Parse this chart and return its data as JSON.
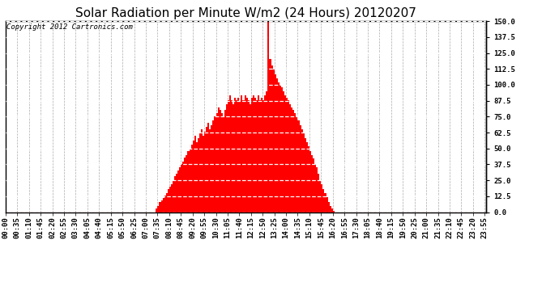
{
  "title": "Solar Radiation per Minute W/m2 (24 Hours) 20120207",
  "copyright_text": "Copyright 2012 Cartronics.com",
  "bar_color": "#ff0000",
  "background_color": "#ffffff",
  "plot_bg_color": "#ffffff",
  "ylim": [
    0.0,
    150.0
  ],
  "yticks": [
    0.0,
    12.5,
    25.0,
    37.5,
    50.0,
    62.5,
    75.0,
    87.5,
    100.0,
    112.5,
    125.0,
    137.5,
    150.0
  ],
  "grid_color": "#aaaaaa",
  "title_fontsize": 11,
  "tick_fontsize": 6.5,
  "values": [
    0,
    0,
    0,
    0,
    0,
    0,
    0,
    0,
    0,
    0,
    0,
    0,
    0,
    0,
    0,
    0,
    0,
    0,
    0,
    0,
    0,
    0,
    0,
    0,
    0,
    0,
    0,
    0,
    0,
    0,
    0,
    0,
    0,
    0,
    0,
    0,
    0,
    0,
    0,
    0,
    0,
    0,
    0,
    0,
    0,
    0,
    0,
    0,
    0,
    0,
    0,
    0,
    0,
    0,
    0,
    0,
    0,
    0,
    0,
    0,
    0,
    0,
    0,
    0,
    0,
    0,
    0,
    0,
    0,
    0,
    0,
    0,
    0,
    0,
    0,
    0,
    0,
    0,
    0,
    0,
    0,
    0,
    0,
    0,
    0,
    0,
    0,
    0,
    0,
    0,
    3,
    5,
    8,
    9,
    11,
    13,
    15,
    18,
    20,
    22,
    25,
    28,
    30,
    33,
    35,
    38,
    40,
    43,
    45,
    48,
    50,
    53,
    56,
    60,
    55,
    58,
    62,
    65,
    60,
    63,
    67,
    70,
    65,
    68,
    72,
    75,
    78,
    82,
    80,
    78,
    75,
    80,
    85,
    88,
    92,
    88,
    85,
    90,
    88,
    90,
    87,
    92,
    88,
    92,
    90,
    88,
    85,
    90,
    92,
    90,
    88,
    92,
    88,
    90,
    88,
    92,
    95,
    150,
    120,
    115,
    112,
    108,
    105,
    102,
    100,
    98,
    95,
    92,
    90,
    88,
    85,
    82,
    80,
    78,
    75,
    72,
    68,
    65,
    62,
    58,
    55,
    52,
    48,
    45,
    42,
    38,
    35,
    30,
    25,
    22,
    18,
    15,
    12,
    8,
    5,
    3,
    1,
    0,
    0,
    0,
    0,
    0,
    0,
    0,
    0,
    0,
    0,
    0,
    0,
    0,
    0,
    0,
    0,
    0,
    0,
    0,
    0,
    0,
    0,
    0,
    0,
    0,
    0,
    0,
    0,
    0,
    0,
    0,
    0,
    0,
    0,
    0,
    0,
    0,
    0,
    0,
    0,
    0,
    0,
    0,
    0,
    0,
    0,
    0,
    0,
    0,
    0,
    0,
    0,
    0,
    0,
    0,
    0,
    0,
    0,
    0,
    0,
    0,
    0,
    0,
    0,
    0,
    0,
    0,
    0,
    0,
    0,
    0,
    0,
    0,
    0,
    0,
    0,
    0,
    0,
    0,
    0,
    0,
    0,
    0,
    0,
    0,
    0,
    0,
    0,
    0,
    0,
    0
  ]
}
